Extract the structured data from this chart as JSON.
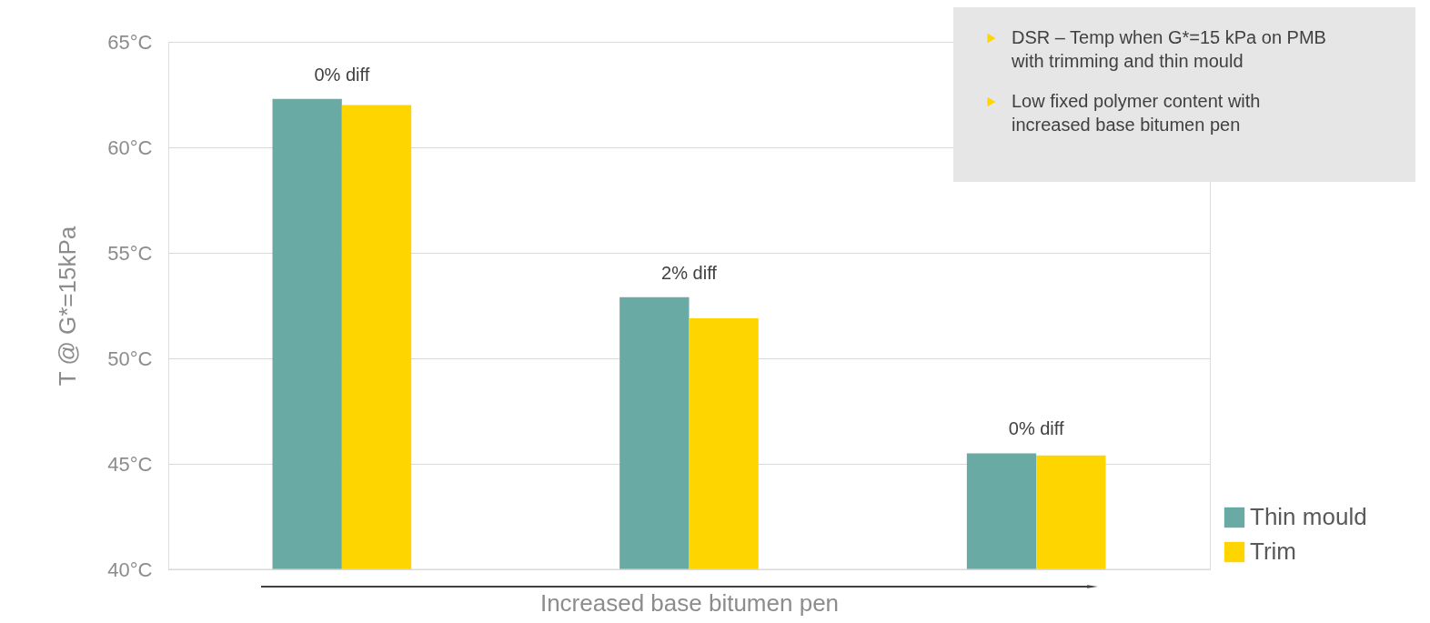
{
  "chart_data": {
    "type": "bar",
    "categories": [
      null,
      null,
      null
    ],
    "xlabel": "Increased base bitumen pen",
    "ylabel": "T @ G*=15kPa",
    "series": [
      {
        "name": "Thin mould",
        "color": "#6aaaa5",
        "values": [
          62.3,
          52.9,
          45.5
        ]
      },
      {
        "name": "Trim",
        "color": "#ffd500",
        "values": [
          62.0,
          51.9,
          45.4
        ]
      }
    ],
    "ylim": [
      40,
      65
    ],
    "yticks": [
      {
        "value": 40,
        "label": "40°C"
      },
      {
        "value": 45,
        "label": "45°C"
      },
      {
        "value": 50,
        "label": "50°C"
      },
      {
        "value": 55,
        "label": "55°C"
      },
      {
        "value": 60,
        "label": "60°C"
      },
      {
        "value": 65,
        "label": "65°C"
      }
    ],
    "grid": "y",
    "legend": "bottom right",
    "annotations": [
      {
        "text": "0% diff",
        "y": 62.3
      },
      {
        "text": "2% diff",
        "y": 52.9
      },
      {
        "text": "0% diff",
        "y": 45.5
      },
      "DSR – Temp when G*=15 kPa on PMB with trimming and thin mould",
      "Low fixed polymer content with increased base bitumen pen"
    ]
  }
}
